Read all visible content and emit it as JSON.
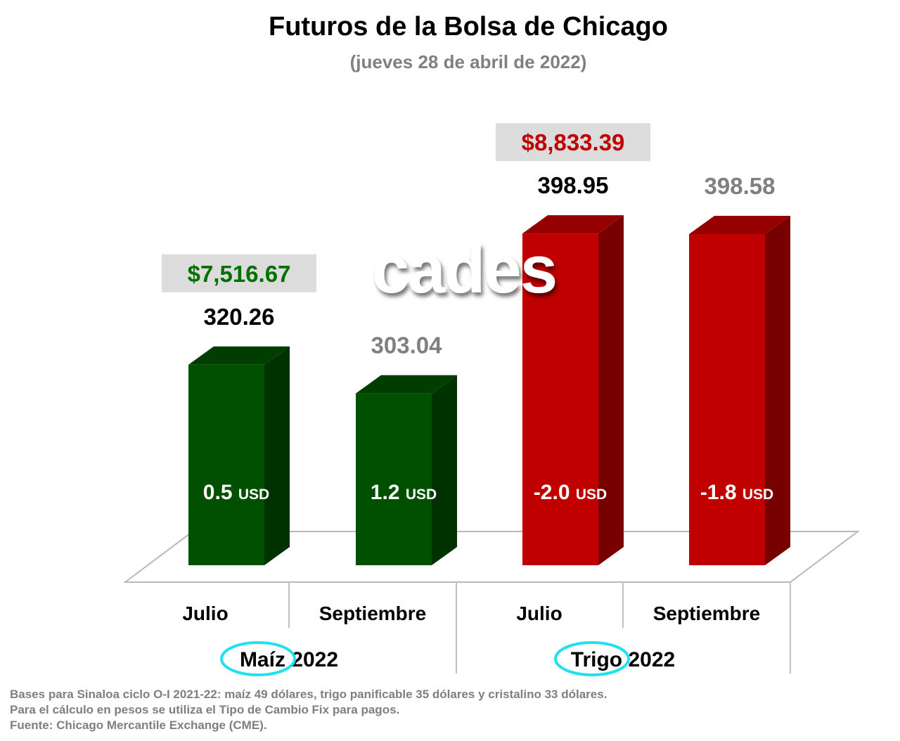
{
  "header": {
    "title": "Futuros de la Bolsa de Chicago",
    "subtitle": "(jueves 28 de abril de 2022)"
  },
  "watermark": "cades",
  "chart_data": {
    "type": "bar",
    "title": "Futuros de la Bolsa de Chicago",
    "subtitle": "(jueves 28 de abril de 2022)",
    "xlabel": "",
    "ylabel": "",
    "categories": [
      "Julio",
      "Septiembre",
      "Julio",
      "Septiembre"
    ],
    "values": [
      320.26,
      303.04,
      398.95,
      398.58
    ],
    "value_labels": [
      "320.26",
      "303.04",
      "398.95",
      "398.58"
    ],
    "change_labels": [
      "0.5",
      "1.2",
      "-2.0",
      "-1.8"
    ],
    "change_unit": "USD",
    "groups": [
      {
        "name_word": "Maíz",
        "year": "2022",
        "indices": [
          0,
          1
        ],
        "color": "#005000"
      },
      {
        "name_word": "Trigo",
        "year": "2022",
        "indices": [
          2,
          3
        ],
        "color": "#c00000"
      }
    ],
    "peso_labels": [
      {
        "bar": 0,
        "text": "$7,516.67",
        "color": "#007000"
      },
      {
        "bar": 2,
        "text": "$8,833.39",
        "color": "#c00000"
      }
    ],
    "value_label_colors": [
      "#000000",
      "#808080",
      "#000000",
      "#808080"
    ],
    "circle_color": "#22e0f0",
    "ylim": [
      200,
      420
    ],
    "grid": false,
    "legend": "none"
  },
  "footnotes": [
    "Bases para Sinaloa ciclo O-I 2021-22: maíz 49 dólares, trigo panificable 35 dólares y cristalino 33 dólares.",
    "Para el cálculo en pesos se utiliza el Tipo de Cambio Fix para pagos.",
    "Fuente: Chicago Mercantile Exchange (CME)."
  ]
}
